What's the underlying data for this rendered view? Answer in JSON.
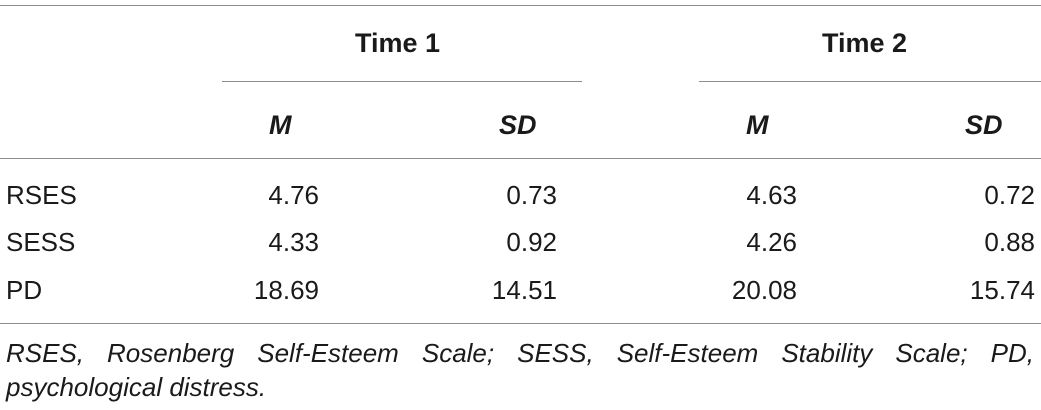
{
  "table": {
    "groups": [
      {
        "label": "Time 1"
      },
      {
        "label": "Time 2"
      }
    ],
    "columns": [
      "M",
      "SD",
      "M",
      "SD"
    ],
    "rows": [
      {
        "label": "RSES",
        "values": [
          "4.76",
          "0.73",
          "4.63",
          "0.72"
        ]
      },
      {
        "label": "SESS",
        "values": [
          "4.33",
          "0.92",
          "4.26",
          "0.88"
        ]
      },
      {
        "label": "PD",
        "values": [
          "18.69",
          "14.51",
          "20.08",
          "15.74"
        ]
      }
    ],
    "footnote": "RSES, Rosenberg Self-Esteem Scale; SESS, Self-Esteem Stability Scale; PD, psychological distress."
  }
}
